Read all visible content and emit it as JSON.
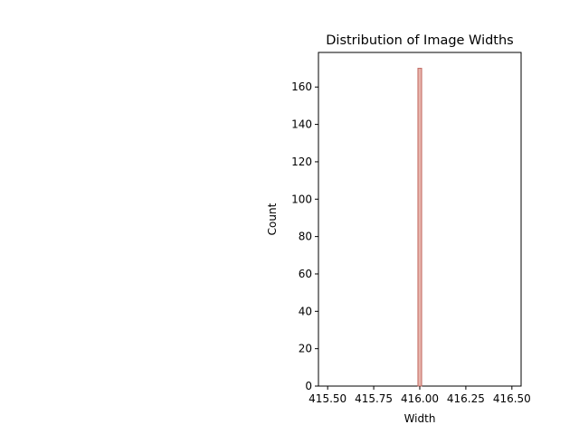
{
  "chart_data": {
    "type": "bar",
    "title": "Distribution of Image Widths",
    "xlabel": "Width",
    "ylabel": "Count",
    "xlim": [
      415.45,
      416.55
    ],
    "ylim": [
      0,
      178.5
    ],
    "x_ticks": [
      415.5,
      415.75,
      416.0,
      416.25,
      416.5
    ],
    "x_tick_labels": [
      "415.50",
      "415.75",
      "416.00",
      "416.25",
      "416.50"
    ],
    "y_ticks": [
      0,
      20,
      40,
      60,
      80,
      100,
      120,
      140,
      160
    ],
    "y_tick_labels": [
      "0",
      "20",
      "40",
      "60",
      "80",
      "100",
      "120",
      "140",
      "160"
    ],
    "bins": [
      {
        "x0": 415.99,
        "x1": 416.01,
        "count": 170
      }
    ],
    "grid": false,
    "colors": {
      "bar_fill": "#e8b4ac",
      "bar_edge": "#c0675f"
    }
  }
}
